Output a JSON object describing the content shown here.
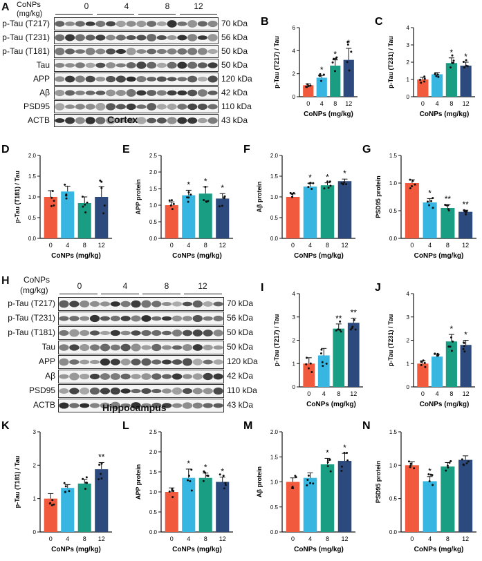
{
  "colors": {
    "c0": "#f15a3c",
    "c4": "#36b6e0",
    "c8": "#1a9e83",
    "c12": "#2c4a7e",
    "band": "#222222"
  },
  "cortex": {
    "panel_label": "A",
    "header_label_line1": "CoNPs",
    "header_label_line2": "(mg/kg)",
    "doses": [
      "0",
      "4",
      "8",
      "12"
    ],
    "region": "Cortex",
    "rows": [
      {
        "name": "p-Tau (T217)",
        "kda": "70 kDa"
      },
      {
        "name": "p-Tau (T231)",
        "kda": "56 kDa"
      },
      {
        "name": "p-Tau (T181)",
        "kda": "50 kDa"
      },
      {
        "name": "Tau",
        "kda": "50 kDa"
      },
      {
        "name": "APP",
        "kda": "120 kDa"
      },
      {
        "name": "Aβ",
        "kda": "42 kDa"
      },
      {
        "name": "PSD95",
        "kda": "110 kDa"
      },
      {
        "name": "ACTB",
        "kda": "43 kDa"
      }
    ]
  },
  "hippocampus": {
    "panel_label": "H",
    "header_label_line1": "CoNPs",
    "header_label_line2": "(mg/kg)",
    "doses": [
      "0",
      "4",
      "8",
      "12"
    ],
    "region": "Hippocampus",
    "rows": [
      {
        "name": "p-Tau (T217)",
        "kda": "70 kDa"
      },
      {
        "name": "p-Tau (T231)",
        "kda": "56 kDa"
      },
      {
        "name": "p-Tau (T181)",
        "kda": "50 kDa"
      },
      {
        "name": "Tau",
        "kda": "50 kDa"
      },
      {
        "name": "APP",
        "kda": "120 kDa"
      },
      {
        "name": "Aβ",
        "kda": "42 kDa"
      },
      {
        "name": "PSD95",
        "kda": "110 kDa"
      },
      {
        "name": "ACTB",
        "kda": "43 kDa"
      }
    ]
  },
  "chart_data": [
    {
      "panel": "B",
      "type": "bar",
      "categories": [
        "0",
        "4",
        "8",
        "12"
      ],
      "values": [
        1.0,
        1.65,
        2.7,
        3.2
      ],
      "errors": [
        0.12,
        0.2,
        0.5,
        1.0
      ],
      "sig": [
        "",
        "*",
        "*",
        "*"
      ],
      "ylabel": "p-Tau (T217) / Tau",
      "xlabel": "CoNPs (mg/kg)",
      "ylim": [
        0,
        6
      ],
      "yticks": [
        "0",
        "2",
        "4",
        "6"
      ]
    },
    {
      "panel": "C",
      "type": "bar",
      "categories": [
        "0",
        "4",
        "8",
        "12"
      ],
      "values": [
        1.0,
        1.3,
        1.95,
        1.8
      ],
      "errors": [
        0.12,
        0.1,
        0.3,
        0.2
      ],
      "sig": [
        "",
        "",
        "*",
        "*"
      ],
      "ylabel": "p-Tau (T231) / Tau",
      "xlabel": "CoNPs (mg/kg)",
      "ylim": [
        0,
        4
      ],
      "yticks": [
        "0",
        "1",
        "2",
        "3",
        "4"
      ]
    },
    {
      "panel": "D",
      "type": "bar",
      "categories": [
        "0",
        "4",
        "8",
        "12"
      ],
      "values": [
        1.0,
        1.13,
        0.85,
        1.0
      ],
      "errors": [
        0.15,
        0.13,
        0.15,
        0.25
      ],
      "sig": [
        "",
        "",
        "",
        ""
      ],
      "ylabel": "p-Tau (T181) / Tau",
      "xlabel": "CoNPs (mg/kg)",
      "ylim": [
        0,
        2.0
      ],
      "yticks": [
        "0.0",
        "0.5",
        "1.0",
        "1.5",
        "2.0"
      ]
    },
    {
      "panel": "E",
      "type": "bar",
      "categories": [
        "0",
        "4",
        "8",
        "12"
      ],
      "values": [
        1.0,
        1.3,
        1.35,
        1.2
      ],
      "errors": [
        0.1,
        0.15,
        0.2,
        0.15
      ],
      "sig": [
        "",
        "*",
        "*",
        "*"
      ],
      "ylabel": "APP protein",
      "xlabel": "CoNPs (mg/kg)",
      "ylim": [
        0,
        2.5
      ],
      "yticks": [
        "0.0",
        "0.5",
        "1.0",
        "1.5",
        "2.0",
        "2.5"
      ]
    },
    {
      "panel": "F",
      "type": "bar",
      "categories": [
        "0",
        "4",
        "8",
        "12"
      ],
      "values": [
        1.0,
        1.25,
        1.28,
        1.38
      ],
      "errors": [
        0.07,
        0.08,
        0.06,
        0.05
      ],
      "sig": [
        "",
        "*",
        "*",
        "*"
      ],
      "ylabel": "Aβ protein",
      "xlabel": "CoNPs (mg/kg)",
      "ylim": [
        0,
        2.0
      ],
      "yticks": [
        "0.0",
        "0.5",
        "1.0",
        "1.5",
        "2.0"
      ]
    },
    {
      "panel": "G",
      "type": "bar",
      "categories": [
        "0",
        "4",
        "8",
        "12"
      ],
      "values": [
        1.0,
        0.65,
        0.55,
        0.48
      ],
      "errors": [
        0.06,
        0.07,
        0.06,
        0.03
      ],
      "sig": [
        "",
        "*",
        "**",
        "**"
      ],
      "ylabel": "PSD95 protein",
      "xlabel": "CoNPs (mg/kg)",
      "ylim": [
        0,
        1.5
      ],
      "yticks": [
        "0.0",
        "0.5",
        "1.0",
        "1.5"
      ]
    },
    {
      "panel": "I",
      "type": "bar",
      "categories": [
        "0",
        "4",
        "8",
        "12"
      ],
      "values": [
        1.0,
        1.35,
        2.5,
        2.75
      ],
      "errors": [
        0.25,
        0.3,
        0.2,
        0.2
      ],
      "sig": [
        "",
        "",
        "**",
        "**"
      ],
      "ylabel": "p-Tau (T217) / Tau",
      "xlabel": "CoNPs (mg/kg)",
      "ylim": [
        0,
        4
      ],
      "yticks": [
        "0",
        "1",
        "2",
        "3",
        "4"
      ]
    },
    {
      "panel": "J",
      "type": "bar",
      "categories": [
        "0",
        "4",
        "8",
        "12"
      ],
      "values": [
        1.0,
        1.3,
        1.95,
        1.8
      ],
      "errors": [
        0.12,
        0.1,
        0.3,
        0.2
      ],
      "sig": [
        "",
        "",
        "*",
        "*"
      ],
      "ylabel": "p-Tau (T231) / Tau",
      "xlabel": "CoNPs (mg/kg)",
      "ylim": [
        0,
        4
      ],
      "yticks": [
        "0",
        "1",
        "2",
        "3",
        "4"
      ]
    },
    {
      "panel": "K",
      "type": "bar",
      "categories": [
        "0",
        "4",
        "8",
        "12"
      ],
      "values": [
        1.0,
        1.32,
        1.45,
        1.88
      ],
      "errors": [
        0.15,
        0.1,
        0.12,
        0.2
      ],
      "sig": [
        "",
        "",
        "",
        "**"
      ],
      "ylabel": "p-Tau (T181) / Tau",
      "xlabel": "CoNPs (mg/kg)",
      "ylim": [
        0,
        3
      ],
      "yticks": [
        "0",
        "1",
        "2",
        "3"
      ]
    },
    {
      "panel": "L",
      "type": "bar",
      "categories": [
        "0",
        "4",
        "8",
        "12"
      ],
      "values": [
        1.0,
        1.35,
        1.35,
        1.25
      ],
      "errors": [
        0.1,
        0.22,
        0.12,
        0.12
      ],
      "sig": [
        "",
        "*",
        "*",
        "*"
      ],
      "ylabel": "APP protein",
      "xlabel": "CoNPs (mg/kg)",
      "ylim": [
        0,
        2.5
      ],
      "yticks": [
        "0.0",
        "0.5",
        "1.0",
        "1.5",
        "2.0",
        "2.5"
      ]
    },
    {
      "panel": "M",
      "type": "bar",
      "categories": [
        "0",
        "4",
        "8",
        "12"
      ],
      "values": [
        1.0,
        1.08,
        1.35,
        1.42
      ],
      "errors": [
        0.08,
        0.1,
        0.12,
        0.15
      ],
      "sig": [
        "",
        "",
        "*",
        "*"
      ],
      "ylabel": "Aβ protein",
      "xlabel": "CoNPs (mg/kg)",
      "ylim": [
        0,
        2.0
      ],
      "yticks": [
        "0.0",
        "0.5",
        "1.0",
        "1.5",
        "2.0"
      ]
    },
    {
      "panel": "N",
      "type": "bar",
      "categories": [
        "0",
        "4",
        "8",
        "12"
      ],
      "values": [
        1.0,
        0.76,
        0.98,
        1.08
      ],
      "errors": [
        0.05,
        0.07,
        0.06,
        0.06
      ],
      "sig": [
        "",
        "*",
        "",
        ""
      ],
      "ylabel": "PSD95 protein",
      "xlabel": "CoNPs (mg/kg)",
      "ylim": [
        0,
        1.5
      ],
      "yticks": [
        "0.0",
        "0.5",
        "1.0",
        "1.5"
      ]
    }
  ]
}
